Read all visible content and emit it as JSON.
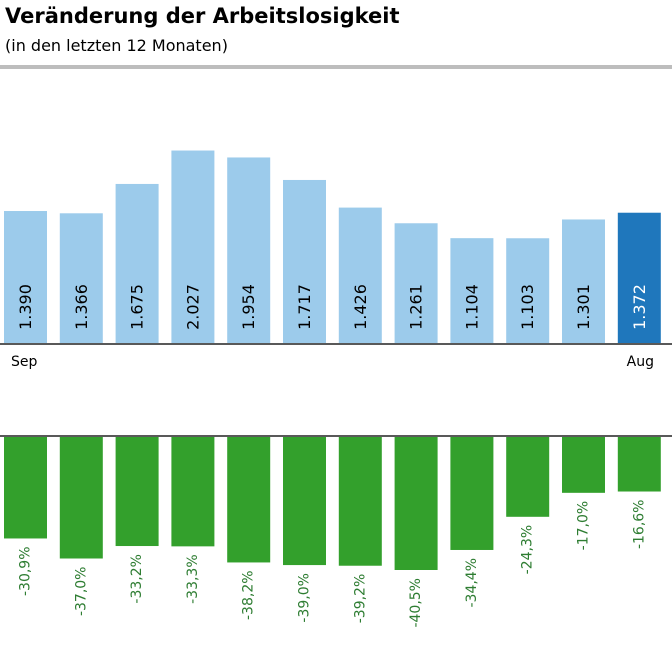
{
  "title": "Veränderung der Arbeitslosigkeit",
  "subtitle": "(in den letzten 12 Monaten)",
  "colors": {
    "bar": "#9ccbeb",
    "bar_highlight": "#1f77bc",
    "change_bar": "#33a02c",
    "change_label": "#2e7d32",
    "baseline": "#595959",
    "rule": "#bdbdbd"
  },
  "chart_data": [
    {
      "type": "bar",
      "categories": [
        "Sep",
        "",
        "",
        "",
        "",
        "",
        "",
        "",
        "",
        "",
        "",
        "Aug"
      ],
      "values": [
        1390,
        1366,
        1675,
        2027,
        1954,
        1717,
        1426,
        1261,
        1104,
        1103,
        1301,
        1372
      ],
      "value_labels": [
        "1.390",
        "1.366",
        "1.675",
        "2.027",
        "1.954",
        "1.717",
        "1.426",
        "1.261",
        "1.104",
        "1.103",
        "1.301",
        "1.372"
      ],
      "highlight_index": 11,
      "ylim": [
        0,
        2180
      ]
    },
    {
      "type": "bar",
      "values": [
        -30.9,
        -37.0,
        -33.2,
        -33.3,
        -38.2,
        -39.0,
        -39.2,
        -40.5,
        -34.4,
        -24.3,
        -17.0,
        -16.6
      ],
      "value_labels": [
        "-30,9%",
        "-37,0%",
        "-33,2%",
        "-33,3%",
        "-38,2%",
        "-39,0%",
        "-39,2%",
        "-40,5%",
        "-34,4%",
        "-24,3%",
        "-17,0%",
        "-16,6%"
      ],
      "ylim": [
        -40.5,
        0
      ]
    }
  ]
}
